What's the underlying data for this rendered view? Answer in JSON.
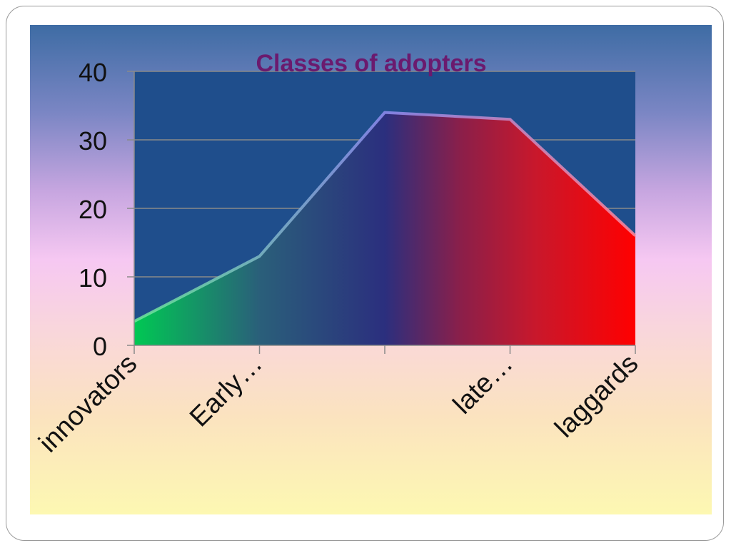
{
  "chart_data": {
    "type": "area",
    "title": "Classes of adopters",
    "categories": [
      "innovators",
      "Early…",
      "",
      "late…",
      "laggards"
    ],
    "values": [
      3.5,
      13,
      34,
      33,
      16
    ],
    "ylim": [
      0,
      40
    ],
    "yticks": [
      "0",
      "10",
      "20",
      "30",
      "40"
    ],
    "grid": true,
    "legend": "none",
    "xlabel": "",
    "ylabel": ""
  },
  "colors": {
    "plot_background": "#1f4e8c",
    "title": "#6b1a6e",
    "fill_gradient": [
      "#00c853",
      "#2a5f7a",
      "#2b2f7e",
      "#8a1f4a",
      "#d4142a",
      "#ff0000"
    ]
  }
}
